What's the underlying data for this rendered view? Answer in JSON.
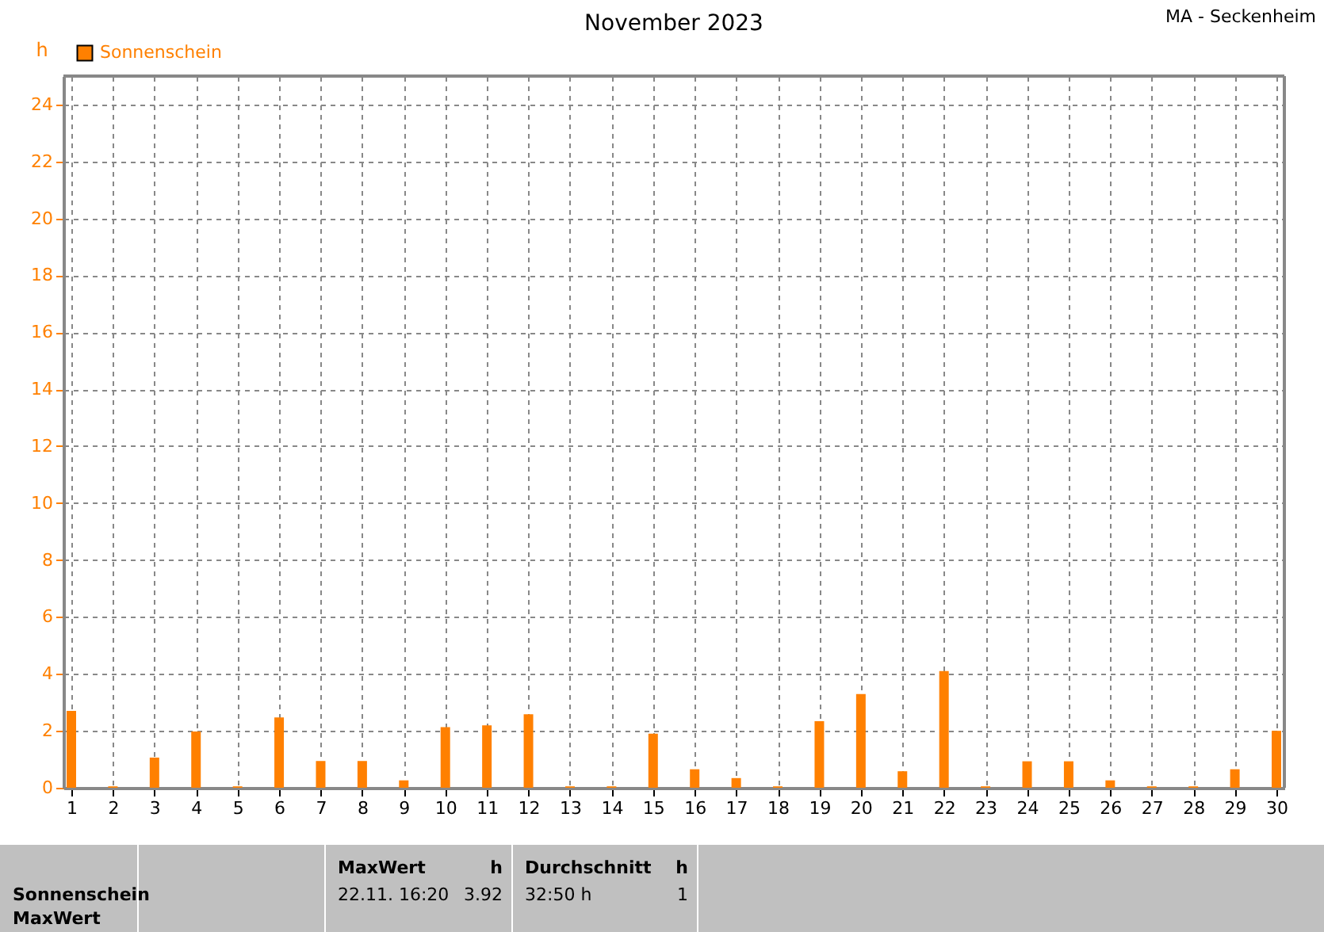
{
  "chart_data": {
    "type": "bar",
    "title": "November 2023",
    "subtitle": "MA - Seckenheim",
    "ylabel": "h",
    "x": [
      1,
      2,
      3,
      4,
      5,
      6,
      7,
      8,
      9,
      10,
      11,
      12,
      13,
      14,
      15,
      16,
      17,
      18,
      19,
      20,
      21,
      22,
      23,
      24,
      25,
      26,
      27,
      28,
      29,
      30
    ],
    "series": [
      {
        "name": "Sonnenschein",
        "color": "#ff8000",
        "values": [
          2.7,
          0.05,
          1.06,
          1.98,
          0.05,
          2.47,
          0.94,
          0.94,
          0.26,
          2.13,
          2.19,
          2.58,
          0.05,
          0.05,
          1.9,
          0.65,
          0.34,
          0.05,
          2.34,
          3.29,
          0.58,
          4.1,
          0.05,
          0.93,
          0.93,
          0.26,
          0.05,
          0.05,
          0.65,
          2.0
        ]
      }
    ],
    "xlim": [
      1,
      30
    ],
    "xticks": [
      1,
      2,
      3,
      4,
      5,
      6,
      7,
      8,
      9,
      10,
      11,
      12,
      13,
      14,
      15,
      16,
      17,
      18,
      19,
      20,
      21,
      22,
      23,
      24,
      25,
      26,
      27,
      28,
      29,
      30
    ],
    "ylim": [
      0,
      25
    ],
    "yticks": [
      0,
      2,
      4,
      6,
      8,
      10,
      12,
      14,
      16,
      18,
      20,
      22,
      24
    ],
    "grid": true,
    "legend": "top left",
    "annotations": [
      "Sonnenschein",
      "MaxWert",
      "MaxWert",
      "h",
      "22.11.  16:20",
      "3.92",
      "Durchschnitt",
      "h",
      "32:50 h",
      "1"
    ]
  }
}
